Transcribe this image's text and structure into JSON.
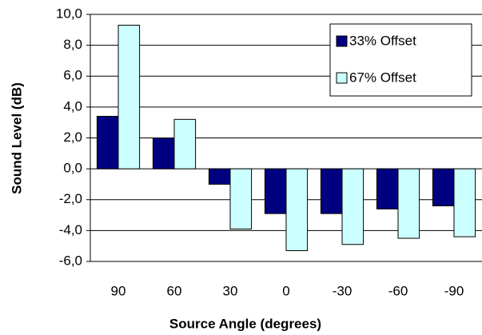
{
  "chart_data": {
    "type": "bar",
    "x_label": "Source Angle (degrees)",
    "y_label": "Sound Level (dB)",
    "categories": [
      "90",
      "60",
      "30",
      "0",
      "-30",
      "-60",
      "-90"
    ],
    "series": [
      {
        "name": "33% Offset",
        "color": "#000080",
        "values": [
          3.4,
          2.0,
          -1.0,
          -2.9,
          -2.9,
          -2.6,
          -2.4
        ]
      },
      {
        "name": "67% Offset",
        "color": "#ccffff",
        "values": [
          9.3,
          3.2,
          -3.9,
          -5.3,
          -4.9,
          -4.5,
          -4.4
        ]
      }
    ],
    "ylim": [
      -6,
      10
    ],
    "yticks": [
      {
        "value": -6,
        "label": "-6,0"
      },
      {
        "value": -4,
        "label": "-4,0"
      },
      {
        "value": -2,
        "label": "-2,0"
      },
      {
        "value": 0,
        "label": "0,0"
      },
      {
        "value": 2,
        "label": "2,0"
      },
      {
        "value": 4,
        "label": "4,0"
      },
      {
        "value": 6,
        "label": "6,0"
      },
      {
        "value": 8,
        "label": "8,0"
      },
      {
        "value": 10,
        "label": "10,0"
      }
    ],
    "grid": true,
    "legend": "top-right"
  }
}
